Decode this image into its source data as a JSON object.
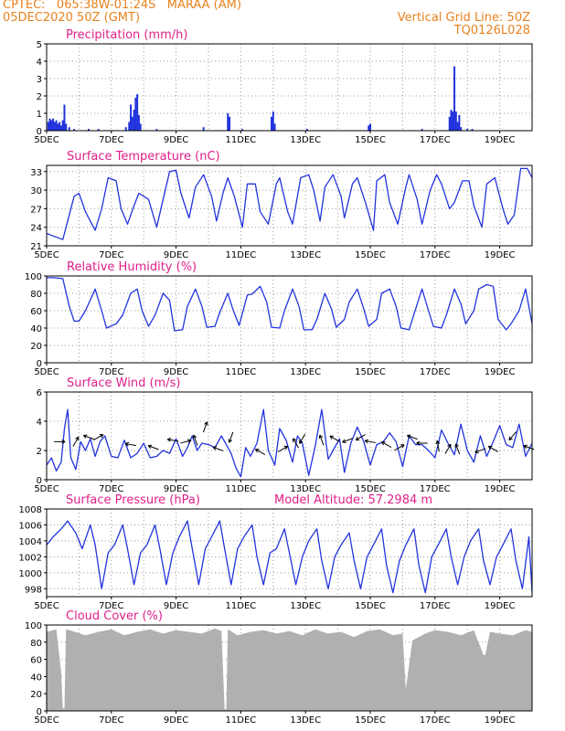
{
  "header": {
    "left_line1": "CPTEC:   065:38W-01:24S   MARAA (AM)",
    "left_line2": "05DEC2020 50Z (GMT)",
    "right_line1": "Vertical Grid Line: 50Z",
    "right_line2": "TQ0126L028"
  },
  "colors": {
    "header": "#e8821e",
    "title": "#e0208a",
    "series": "#2233dd",
    "cloud": "#b0b0b0",
    "grid": "#9a9a9a",
    "arrow": "#000000"
  },
  "x_axis": {
    "tick_labels": [
      "5DEC",
      "7DEC",
      "9DEC",
      "11DEC",
      "13DEC",
      "15DEC",
      "17DEC",
      "19DEC"
    ],
    "tick_days": [
      5,
      7,
      9,
      11,
      13,
      15,
      17,
      19
    ],
    "range_days": [
      5,
      20
    ]
  },
  "chart_data": [
    {
      "id": "precip",
      "type": "bar",
      "title": "Precipitation (mm/h)",
      "ylim": [
        0,
        5
      ],
      "yticks": [
        "0",
        "1",
        "2",
        "3",
        "4",
        "5"
      ],
      "bars": [
        [
          5.05,
          0.5
        ],
        [
          5.1,
          0.7
        ],
        [
          5.15,
          0.6
        ],
        [
          5.2,
          0.7
        ],
        [
          5.25,
          0.5
        ],
        [
          5.3,
          0.6
        ],
        [
          5.35,
          0.4
        ],
        [
          5.4,
          0.5
        ],
        [
          5.45,
          0.3
        ],
        [
          5.5,
          0.6
        ],
        [
          5.55,
          1.5
        ],
        [
          5.6,
          0.4
        ],
        [
          5.7,
          0.2
        ],
        [
          5.85,
          0.1
        ],
        [
          6.3,
          0.1
        ],
        [
          6.6,
          0.1
        ],
        [
          7.45,
          0.2
        ],
        [
          7.55,
          0.5
        ],
        [
          7.6,
          1.5
        ],
        [
          7.65,
          0.8
        ],
        [
          7.7,
          1.2
        ],
        [
          7.75,
          1.9
        ],
        [
          7.8,
          2.1
        ],
        [
          7.85,
          0.9
        ],
        [
          7.9,
          0.4
        ],
        [
          8.4,
          0.1
        ],
        [
          9.85,
          0.2
        ],
        [
          10.6,
          1.0
        ],
        [
          10.65,
          0.8
        ],
        [
          11.05,
          0.1
        ],
        [
          11.95,
          0.8
        ],
        [
          12.0,
          1.1
        ],
        [
          12.05,
          0.4
        ],
        [
          13.05,
          0.1
        ],
        [
          14.95,
          0.3
        ],
        [
          15.0,
          0.4
        ],
        [
          16.6,
          0.1
        ],
        [
          17.45,
          0.8
        ],
        [
          17.5,
          1.2
        ],
        [
          17.55,
          1.1
        ],
        [
          17.6,
          3.7
        ],
        [
          17.65,
          1.1
        ],
        [
          17.7,
          0.5
        ],
        [
          17.75,
          0.9
        ],
        [
          17.8,
          0.2
        ],
        [
          18.0,
          0.1
        ],
        [
          18.15,
          0.1
        ]
      ]
    },
    {
      "id": "temp",
      "type": "line",
      "title": "Surface Temperature (nC)",
      "ylim": [
        21,
        34
      ],
      "yticks": [
        "21",
        "24",
        "27",
        "30",
        "33"
      ],
      "x": [
        5.0,
        5.2,
        5.5,
        5.65,
        5.85,
        6.0,
        6.2,
        6.5,
        6.7,
        6.9,
        7.15,
        7.3,
        7.5,
        7.7,
        7.85,
        8.0,
        8.15,
        8.4,
        8.6,
        8.8,
        9.0,
        9.15,
        9.4,
        9.6,
        9.85,
        10.1,
        10.25,
        10.45,
        10.6,
        10.8,
        11.05,
        11.2,
        11.45,
        11.6,
        11.85,
        12.1,
        12.2,
        12.45,
        12.6,
        12.85,
        13.1,
        13.25,
        13.45,
        13.6,
        13.85,
        14.1,
        14.2,
        14.45,
        14.6,
        14.85,
        15.1,
        15.2,
        15.45,
        15.6,
        15.85,
        16.1,
        16.2,
        16.45,
        16.6,
        16.85,
        17.05,
        17.2,
        17.45,
        17.6,
        17.85,
        18.05,
        18.2,
        18.45,
        18.6,
        18.85,
        19.1,
        19.25,
        19.45,
        19.65,
        19.85,
        20.0
      ],
      "y": [
        23.0,
        22.6,
        22.0,
        25.0,
        29.0,
        29.5,
        26.5,
        23.5,
        27.0,
        32.0,
        31.5,
        27.0,
        24.5,
        27.5,
        29.5,
        29.0,
        28.5,
        24.0,
        28.5,
        33.0,
        33.2,
        29.5,
        25.5,
        30.5,
        32.5,
        29.0,
        25.0,
        29.5,
        32.0,
        29.0,
        24.0,
        31.0,
        31.0,
        26.5,
        24.5,
        31.0,
        32.0,
        26.5,
        24.5,
        32.0,
        32.5,
        30.0,
        25.0,
        30.5,
        32.5,
        29.0,
        25.5,
        31.0,
        32.0,
        28.0,
        23.5,
        31.5,
        32.5,
        28.0,
        24.5,
        30.5,
        32.5,
        28.5,
        24.5,
        30.0,
        32.5,
        31.0,
        27.0,
        28.0,
        31.5,
        31.5,
        27.5,
        24.0,
        31.0,
        32.0,
        27.0,
        24.5,
        26.0,
        33.5,
        33.5,
        32.0
      ]
    },
    {
      "id": "rh",
      "type": "line",
      "title": "Relative Humidity (%)",
      "ylim": [
        0,
        100
      ],
      "yticks": [
        "0",
        "20",
        "40",
        "60",
        "80",
        "100"
      ],
      "x": [
        5.0,
        5.2,
        5.5,
        5.7,
        5.85,
        6.0,
        6.2,
        6.5,
        6.7,
        6.85,
        7.15,
        7.35,
        7.6,
        7.8,
        7.95,
        8.15,
        8.35,
        8.6,
        8.8,
        8.95,
        9.2,
        9.35,
        9.6,
        9.8,
        9.95,
        10.2,
        10.35,
        10.6,
        10.75,
        10.95,
        11.2,
        11.35,
        11.6,
        11.8,
        11.95,
        12.2,
        12.35,
        12.6,
        12.8,
        12.95,
        13.2,
        13.35,
        13.6,
        13.8,
        13.95,
        14.2,
        14.35,
        14.6,
        14.8,
        14.95,
        15.2,
        15.35,
        15.6,
        15.8,
        15.95,
        16.2,
        16.35,
        16.6,
        16.8,
        16.95,
        17.2,
        17.35,
        17.6,
        17.8,
        17.95,
        18.2,
        18.35,
        18.6,
        18.8,
        18.95,
        19.2,
        19.35,
        19.6,
        19.8,
        20.0
      ],
      "y": [
        98,
        98,
        97,
        65,
        48,
        48,
        60,
        85,
        60,
        40,
        45,
        55,
        80,
        85,
        60,
        42,
        55,
        80,
        72,
        37,
        38,
        65,
        85,
        65,
        41,
        42,
        58,
        80,
        62,
        43,
        78,
        79,
        88,
        70,
        41,
        40,
        60,
        85,
        65,
        38,
        38,
        50,
        80,
        62,
        41,
        50,
        70,
        85,
        62,
        42,
        50,
        80,
        85,
        65,
        40,
        38,
        56,
        85,
        60,
        42,
        40,
        55,
        85,
        68,
        45,
        60,
        85,
        90,
        88,
        50,
        38,
        45,
        60,
        85,
        45
      ]
    },
    {
      "id": "wind",
      "type": "line",
      "title": "Surface Wind (m/s)",
      "ylim": [
        0,
        6
      ],
      "yticks": [
        "0",
        "2",
        "4",
        "6"
      ],
      "x": [
        5.0,
        5.15,
        5.3,
        5.45,
        5.55,
        5.65,
        5.75,
        5.9,
        6.05,
        6.2,
        6.35,
        6.5,
        6.65,
        6.8,
        7.0,
        7.2,
        7.4,
        7.6,
        7.8,
        8.0,
        8.2,
        8.4,
        8.6,
        8.8,
        9.0,
        9.2,
        9.35,
        9.5,
        9.65,
        9.8,
        10.0,
        10.2,
        10.4,
        10.55,
        10.7,
        10.85,
        11.0,
        11.15,
        11.3,
        11.5,
        11.7,
        11.85,
        12.05,
        12.2,
        12.4,
        12.6,
        12.75,
        12.9,
        13.1,
        13.3,
        13.5,
        13.7,
        13.85,
        14.05,
        14.2,
        14.4,
        14.6,
        14.8,
        15.0,
        15.2,
        15.4,
        15.6,
        15.8,
        16.0,
        16.2,
        16.4,
        16.6,
        16.8,
        17.0,
        17.2,
        17.4,
        17.6,
        17.8,
        18.0,
        18.2,
        18.4,
        18.6,
        18.8,
        19.0,
        19.2,
        19.4,
        19.6,
        19.8,
        20.0
      ],
      "y": [
        1.0,
        1.5,
        0.6,
        1.2,
        3.5,
        4.8,
        1.5,
        0.7,
        2.6,
        2.0,
        2.8,
        1.6,
        2.6,
        3.0,
        1.6,
        1.5,
        2.7,
        1.5,
        1.8,
        2.5,
        1.5,
        1.6,
        2.0,
        1.8,
        2.8,
        1.6,
        2.2,
        3.0,
        2.0,
        2.5,
        2.4,
        2.2,
        3.0,
        2.4,
        1.8,
        0.8,
        0.2,
        2.2,
        1.6,
        2.5,
        4.8,
        2.0,
        1.0,
        3.5,
        2.7,
        1.2,
        3.0,
        2.5,
        0.3,
        2.3,
        4.8,
        1.4,
        2.0,
        2.8,
        0.5,
        2.5,
        3.6,
        2.6,
        1.0,
        2.4,
        2.6,
        3.2,
        2.6,
        0.9,
        3.0,
        2.4,
        2.4,
        2.0,
        1.5,
        3.4,
        2.5,
        1.7,
        3.8,
        2.0,
        1.2,
        3.0,
        1.6,
        2.6,
        3.7,
        2.4,
        2.2,
        3.8,
        1.6,
        2.5
      ]
    },
    {
      "id": "pressure",
      "type": "line",
      "title": "Surface Pressure (hPa)",
      "annotation": "Model Altitude: 57.2984 m",
      "ylim": [
        997,
        1008
      ],
      "yticks": [
        "998",
        "1000",
        "1002",
        "1004",
        "1006",
        "1008"
      ],
      "x": [
        5.0,
        5.2,
        5.45,
        5.65,
        5.9,
        6.1,
        6.35,
        6.5,
        6.7,
        6.9,
        7.1,
        7.35,
        7.5,
        7.7,
        7.9,
        8.1,
        8.35,
        8.5,
        8.7,
        8.9,
        9.1,
        9.35,
        9.5,
        9.7,
        9.9,
        10.1,
        10.35,
        10.5,
        10.7,
        10.9,
        11.1,
        11.35,
        11.5,
        11.7,
        11.9,
        12.1,
        12.35,
        12.5,
        12.7,
        12.9,
        13.1,
        13.35,
        13.5,
        13.7,
        13.9,
        14.1,
        14.35,
        14.5,
        14.7,
        14.9,
        15.1,
        15.35,
        15.5,
        15.7,
        15.9,
        16.1,
        16.35,
        16.5,
        16.7,
        16.9,
        17.1,
        17.35,
        17.5,
        17.7,
        17.9,
        18.1,
        18.35,
        18.5,
        18.7,
        18.9,
        19.1,
        19.35,
        19.5,
        19.7,
        19.9,
        20.0
      ],
      "y": [
        1003.5,
        1004.5,
        1005.5,
        1006.5,
        1005.0,
        1003.0,
        1006.0,
        1003.5,
        998.0,
        1002.5,
        1003.5,
        1006.0,
        1003.0,
        998.5,
        1002.5,
        1003.5,
        1006.0,
        1003.0,
        998.5,
        1002.5,
        1004.5,
        1006.5,
        1003.0,
        998.5,
        1003.0,
        1004.5,
        1006.5,
        1003.0,
        998.5,
        1003.0,
        1004.5,
        1006.0,
        1002.0,
        998.5,
        1002.5,
        1003.0,
        1005.5,
        1002.5,
        998.5,
        1002.0,
        1004.0,
        1005.5,
        1001.5,
        998.0,
        1002.0,
        1003.5,
        1005.0,
        1001.5,
        998.0,
        1002.0,
        1003.5,
        1005.5,
        1001.0,
        997.5,
        1001.5,
        1003.5,
        1005.5,
        1001.0,
        997.5,
        1002.0,
        1003.5,
        1005.5,
        1002.0,
        998.5,
        1002.0,
        1004.0,
        1005.5,
        1001.5,
        998.5,
        1002.0,
        1003.5,
        1005.5,
        1001.5,
        998.0,
        1004.5,
        997.5
      ]
    },
    {
      "id": "cloud",
      "type": "area",
      "title": "Cloud Cover (%)",
      "ylim": [
        0,
        100
      ],
      "yticks": [
        "0",
        "20",
        "40",
        "60",
        "80",
        "100"
      ],
      "x": [
        5.0,
        5.3,
        5.45,
        5.5,
        5.55,
        5.6,
        5.8,
        6.2,
        6.6,
        7.0,
        7.4,
        7.8,
        8.2,
        8.6,
        9.0,
        9.4,
        9.8,
        10.2,
        10.4,
        10.5,
        10.55,
        10.6,
        10.9,
        11.3,
        11.7,
        12.1,
        12.5,
        12.9,
        13.3,
        13.7,
        14.1,
        14.5,
        14.9,
        15.3,
        15.7,
        16.0,
        16.1,
        16.3,
        16.7,
        17.0,
        17.4,
        17.8,
        18.2,
        18.5,
        18.55,
        18.7,
        19.0,
        19.4,
        19.8,
        20.0
      ],
      "y": [
        92,
        95,
        45,
        3,
        3,
        95,
        93,
        88,
        92,
        95,
        88,
        92,
        95,
        90,
        94,
        92,
        90,
        96,
        93,
        2,
        2,
        95,
        88,
        92,
        94,
        90,
        93,
        88,
        95,
        90,
        92,
        86,
        93,
        95,
        88,
        90,
        25,
        82,
        90,
        94,
        92,
        88,
        94,
        65,
        65,
        92,
        90,
        88,
        94,
        92
      ]
    }
  ],
  "wind_arrows": [
    [
      5.4,
      2.6,
      90
    ],
    [
      5.9,
      2.6,
      30
    ],
    [
      6.3,
      2.9,
      290
    ],
    [
      6.6,
      2.9,
      60
    ],
    [
      7.6,
      2.4,
      280
    ],
    [
      8.3,
      2.2,
      290
    ],
    [
      8.9,
      2.7,
      280
    ],
    [
      9.3,
      2.6,
      75
    ],
    [
      9.6,
      2.7,
      340
    ],
    [
      9.9,
      3.6,
      20
    ],
    [
      10.3,
      2.1,
      290
    ],
    [
      10.7,
      2.9,
      200
    ],
    [
      11.6,
      1.9,
      300
    ],
    [
      12.3,
      2.1,
      60
    ],
    [
      12.7,
      2.5,
      330
    ],
    [
      12.9,
      2.8,
      210
    ],
    [
      13.5,
      2.7,
      340
    ],
    [
      13.9,
      2.8,
      300
    ],
    [
      14.3,
      2.7,
      250
    ],
    [
      14.7,
      2.9,
      240
    ],
    [
      15.0,
      2.6,
      280
    ],
    [
      15.5,
      2.4,
      300
    ],
    [
      15.9,
      2.2,
      60
    ],
    [
      16.3,
      2.9,
      290
    ],
    [
      16.6,
      2.5,
      270
    ],
    [
      17.1,
      2.3,
      350
    ],
    [
      17.4,
      2.1,
      30
    ],
    [
      17.7,
      2.1,
      340
    ],
    [
      18.4,
      2.0,
      250
    ],
    [
      18.8,
      2.1,
      300
    ],
    [
      19.4,
      3.0,
      220
    ],
    [
      19.9,
      2.2,
      290
    ]
  ]
}
